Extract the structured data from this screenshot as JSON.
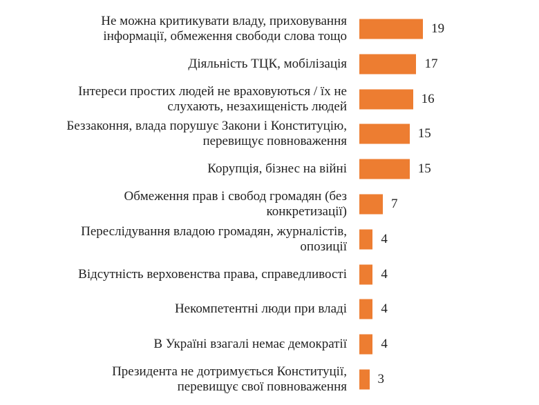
{
  "chart_data": {
    "type": "bar",
    "orientation": "horizontal",
    "color": "#ed7d31",
    "categories": [
      "Не можна критикувати владу, приховування\nінформації, обмеження свободи слова тощо",
      "Діяльність ТЦК, мобілізація",
      "Інтереси простих людей не враховуються / їх не\nслухають, незахищеність людей",
      "Беззаконня, влада порушує Закони і Конституцію,\nперевищує повноваження",
      "Корупція, бізнес на війні",
      "Обмеження прав і свобод громадян (без\nконкретизації)",
      "Переслідування владою громадян, журналістів,\nопозиції",
      "Відсутність верховенства права, справедливості",
      "Некомпетентні люди при владі",
      "В Україні взагалі немає демократії",
      "Президента не дотримується Конституції,\nперевищує свої повноваження"
    ],
    "values": [
      19,
      17,
      16,
      15,
      15,
      7,
      4,
      4,
      4,
      4,
      3
    ]
  }
}
